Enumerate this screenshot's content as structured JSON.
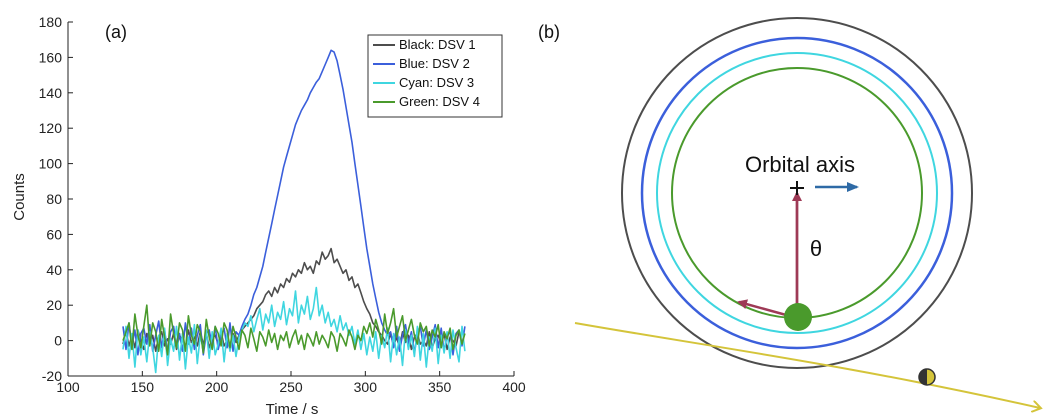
{
  "panel_a": {
    "label": "(a)",
    "chart_data": {
      "type": "line",
      "xlabel": "Time / s",
      "ylabel": "Counts",
      "xlim": [
        100,
        400
      ],
      "ylim": [
        -20,
        180
      ],
      "xticks": [
        100,
        150,
        200,
        250,
        300,
        350,
        400
      ],
      "yticks": [
        -20,
        0,
        20,
        40,
        60,
        80,
        100,
        120,
        140,
        160,
        180
      ],
      "grid": false,
      "legend": "top-right",
      "x_start": 137,
      "x_step": 2,
      "series": [
        {
          "name": "Black: DSV 1",
          "color": "#4d4d4d",
          "values": [
            -2,
            5,
            -3,
            3,
            -4,
            6,
            0,
            -5,
            4,
            -2,
            3,
            -6,
            2,
            5,
            -3,
            1,
            -2,
            4,
            -5,
            3,
            0,
            -4,
            6,
            -1,
            2,
            -3,
            5,
            -2,
            4,
            -4,
            1,
            3,
            -2,
            5,
            -3,
            0,
            -5,
            4,
            -1,
            3,
            6,
            8,
            10,
            12,
            14,
            18,
            20,
            22,
            26,
            28,
            25,
            30,
            27,
            32,
            30,
            35,
            33,
            38,
            36,
            40,
            38,
            44,
            40,
            42,
            38,
            45,
            43,
            50,
            46,
            48,
            52,
            44,
            46,
            42,
            38,
            40,
            34,
            36,
            30,
            32,
            27,
            22,
            18,
            15,
            10,
            8,
            5,
            3,
            0,
            -2,
            4,
            -3,
            2,
            -4,
            5,
            -1,
            3,
            -5,
            2,
            4,
            -2,
            0,
            -3,
            5,
            -4,
            1,
            3,
            -2,
            4,
            -5,
            2,
            0,
            -3,
            5
          ]
        },
        {
          "name": "Blue: DSV 2",
          "color": "#3b5fdb",
          "values": [
            8,
            -5,
            10,
            -3,
            6,
            -8,
            4,
            7,
            -2,
            9,
            -6,
            3,
            11,
            -4,
            6,
            -7,
            5,
            8,
            -3,
            4,
            -6,
            10,
            -2,
            7,
            -5,
            3,
            9,
            -8,
            4,
            6,
            -3,
            8,
            -5,
            2,
            7,
            -4,
            10,
            -6,
            5,
            3,
            8,
            12,
            15,
            20,
            26,
            30,
            36,
            42,
            50,
            58,
            66,
            74,
            82,
            90,
            98,
            104,
            110,
            116,
            122,
            126,
            130,
            133,
            136,
            140,
            143,
            146,
            148,
            152,
            156,
            160,
            164,
            163,
            158,
            150,
            142,
            132,
            122,
            112,
            100,
            88,
            76,
            64,
            52,
            42,
            32,
            24,
            16,
            10,
            6,
            3,
            5,
            -4,
            8,
            -6,
            3,
            9,
            -2,
            5,
            -7,
            4,
            8,
            -3,
            6,
            -5,
            2,
            9,
            -4,
            7,
            -6,
            3,
            5,
            -8,
            4,
            6,
            -3,
            8
          ]
        },
        {
          "name": "Cyan: DSV 3",
          "color": "#3fd6e0",
          "values": [
            -5,
            8,
            -10,
            4,
            -15,
            6,
            -8,
            2,
            -12,
            5,
            -4,
            -18,
            3,
            -9,
            7,
            -14,
            1,
            -6,
            8,
            -11,
            4,
            -16,
            2,
            -7,
            9,
            -13,
            3,
            -5,
            6,
            -10,
            5,
            -8,
            -2,
            7,
            -12,
            4,
            -6,
            3,
            -9,
            2,
            6,
            10,
            8,
            14,
            5,
            12,
            18,
            6,
            15,
            10,
            20,
            8,
            16,
            12,
            22,
            9,
            18,
            14,
            28,
            10,
            20,
            15,
            25,
            12,
            18,
            30,
            14,
            20,
            10,
            16,
            8,
            12,
            5,
            14,
            6,
            10,
            3,
            8,
            -2,
            6,
            -5,
            4,
            -8,
            2,
            -6,
            5,
            -10,
            3,
            -4,
            7,
            -12,
            4,
            -8,
            2,
            -14,
            6,
            -5,
            3,
            -9,
            8,
            -11,
            4,
            -15,
            2,
            -6,
            7,
            -13,
            3,
            -7,
            5,
            -10,
            6,
            -4,
            -12,
            8,
            -6
          ]
        },
        {
          "name": "Green: DSV 4",
          "color": "#4a9a2c",
          "values": [
            0,
            5,
            10,
            -5,
            15,
            3,
            -4,
            8,
            20,
            -3,
            10,
            5,
            -6,
            12,
            2,
            -8,
            15,
            4,
            -4,
            10,
            6,
            -6,
            14,
            3,
            -2,
            9,
            5,
            -7,
            12,
            2,
            -5,
            8,
            4,
            -3,
            10,
            6,
            -4,
            8,
            2,
            -5,
            6,
            3,
            -4,
            7,
            1,
            -6,
            5,
            2,
            -3,
            6,
            -1,
            4,
            -5,
            3,
            0,
            5,
            -4,
            2,
            6,
            -2,
            3,
            -5,
            4,
            1,
            -3,
            5,
            -2,
            3,
            0,
            -4,
            5,
            2,
            -6,
            4,
            1,
            -3,
            6,
            2,
            -5,
            3,
            0,
            8,
            4,
            10,
            2,
            12,
            6,
            -2,
            15,
            4,
            10,
            18,
            2,
            8,
            14,
            0,
            6,
            12,
            3,
            -2,
            10,
            5,
            8,
            -3,
            6,
            2,
            9,
            -4,
            5,
            1,
            7,
            -5,
            3,
            6,
            -2,
            4
          ]
        }
      ]
    }
  },
  "panel_b": {
    "label": "(b)",
    "axis_label": "Orbital axis",
    "theta_label": "θ",
    "colors": {
      "ring_black": "#4d4d4d",
      "ring_blue": "#3b5fdb",
      "ring_cyan": "#3fd6e0",
      "ring_green": "#4a9a2c",
      "vector": "#9e3a56",
      "axis_arrow": "#2e6aa6",
      "trajectory": "#d4c43a",
      "dot": "#4a9a2c"
    }
  }
}
